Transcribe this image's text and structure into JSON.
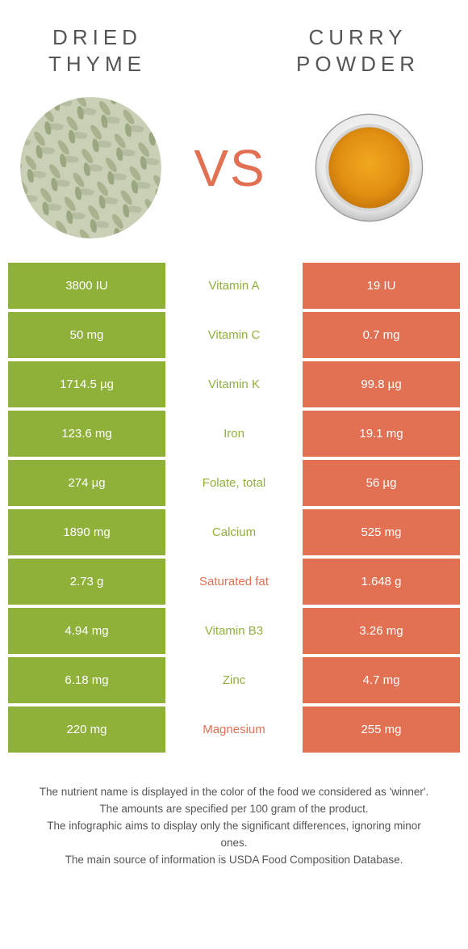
{
  "colors": {
    "green": "#8fb13a",
    "orange": "#e27052",
    "text": "#555555",
    "white": "#ffffff"
  },
  "header": {
    "left_title": "DRIED\nTHYME",
    "right_title": "CURRY\nPOWDER",
    "vs": "VS"
  },
  "rows": [
    {
      "left": "3800 IU",
      "mid": "Vitamin A",
      "right": "19 IU",
      "winner": "left"
    },
    {
      "left": "50 mg",
      "mid": "Vitamin C",
      "right": "0.7 mg",
      "winner": "left"
    },
    {
      "left": "1714.5 µg",
      "mid": "Vitamin K",
      "right": "99.8 µg",
      "winner": "left"
    },
    {
      "left": "123.6 mg",
      "mid": "Iron",
      "right": "19.1 mg",
      "winner": "left"
    },
    {
      "left": "274 µg",
      "mid": "Folate, total",
      "right": "56 µg",
      "winner": "left"
    },
    {
      "left": "1890 mg",
      "mid": "Calcium",
      "right": "525 mg",
      "winner": "left"
    },
    {
      "left": "2.73 g",
      "mid": "Saturated fat",
      "right": "1.648 g",
      "winner": "right"
    },
    {
      "left": "4.94 mg",
      "mid": "Vitamin B3",
      "right": "3.26 mg",
      "winner": "left"
    },
    {
      "left": "6.18 mg",
      "mid": "Zinc",
      "right": "4.7 mg",
      "winner": "left"
    },
    {
      "left": "220 mg",
      "mid": "Magnesium",
      "right": "255 mg",
      "winner": "right"
    }
  ],
  "notes": [
    "The nutrient name is displayed in the color of the food we considered as 'winner'.",
    "The amounts are specified per 100 gram of the product.",
    "The infographic aims to display only the significant differences, ignoring minor ones.",
    "The main source of information is USDA Food Composition Database."
  ]
}
